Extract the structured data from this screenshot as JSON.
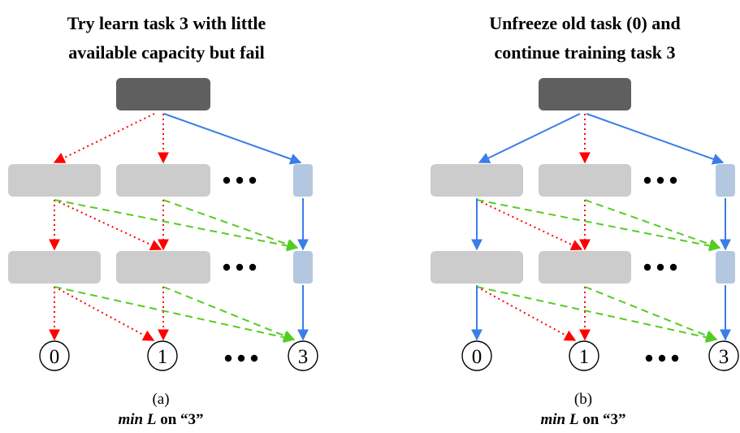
{
  "panels": [
    {
      "id": "a",
      "title_line1": "Try learn task 3 with little",
      "title_line2": "available capacity but fail",
      "caption_letter": "(a)",
      "caption_min": "min L",
      "caption_on": " on “3”",
      "outputs": [
        "0",
        "1",
        "3"
      ]
    },
    {
      "id": "b",
      "title_line1": "Unfreeze old task (0) and",
      "title_line2": "continue training task 3",
      "caption_letter": "(b)",
      "caption_min": "min L",
      "caption_on": " on “3”",
      "outputs": [
        "0",
        "1",
        "3"
      ]
    }
  ],
  "colors": {
    "input_block": "#5f5f5f",
    "frozen_block": "#cccccc",
    "new_block": "#b4c7e0",
    "red_dotted": "#ff0000",
    "green_dashed": "#55cc22",
    "blue_solid": "#3a7ee8"
  }
}
